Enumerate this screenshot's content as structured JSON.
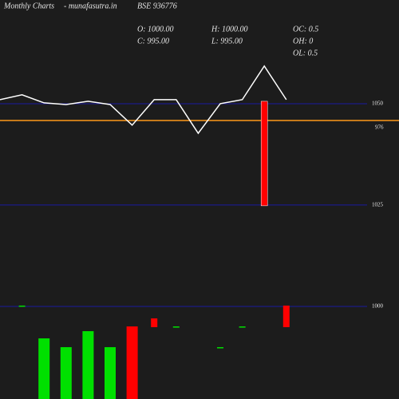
{
  "chart_data": {
    "type": "line",
    "header": "Monthly Charts",
    "site": "- munafasutra.in",
    "title": "BSE 936776",
    "stats": [
      "O: 1000.00",
      "H: 1000.00",
      "OC: 0.5",
      "C: 995.00",
      "L: 995.00",
      "OH: 0",
      "OL: 0.5"
    ],
    "categories": [
      null,
      null,
      null,
      null,
      null,
      null,
      null,
      null,
      null,
      null,
      null,
      null,
      null,
      null
    ],
    "values": [
      1051.0,
      1052.2,
      1050.2,
      1049.8,
      1050.6,
      1049.8,
      1044.7,
      1051.0,
      1051.0,
      1042.7,
      1050.0,
      1051.0,
      1059.3,
      1051.0
    ],
    "color": "#ffffff",
    "ylim": [
      1075.6,
      1016.5
    ],
    "yticks": [
      1050,
      1025
    ],
    "grid_color": "#1a1aa0",
    "candle": {
      "index": 12,
      "open": 1050.6,
      "close": 1024.8,
      "color": "#ff0000"
    },
    "ref_line": {
      "label": "976",
      "color": "#ff9a1a"
    },
    "volume": {
      "ylim": [
        0,
        1724
      ],
      "yticks": [
        1000
      ],
      "high": [
        null,
        1009,
        655,
        560,
        733,
        560,
        784,
        871,
        784,
        null,
        560,
        784,
        null,
        1009
      ],
      "low": [
        null,
        1000,
        0,
        0,
        0,
        0,
        0,
        776,
        776,
        null,
        552,
        776,
        null,
        776
      ],
      "colors": [
        null,
        "#00e000",
        "#00e000",
        "#00e000",
        "#00e000",
        "#00e000",
        "#ff0000",
        "#ff0000",
        "#00e000",
        null,
        "#00e000",
        "#00e000",
        null,
        "#ff0000"
      ]
    }
  }
}
